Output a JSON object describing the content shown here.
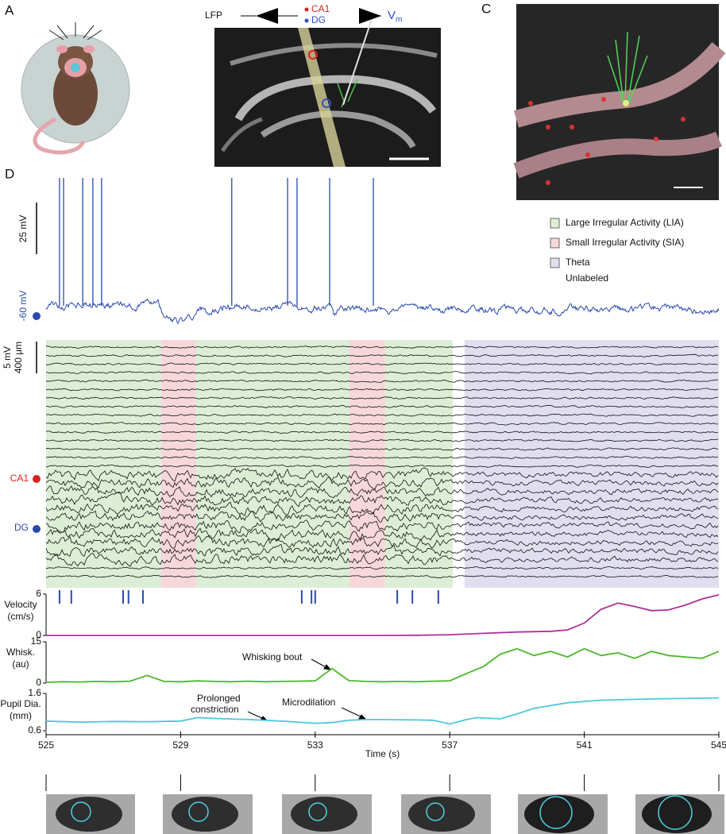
{
  "panel_a": {
    "letter": "A",
    "lfp": "LFP",
    "vm": "V",
    "vm_sub": "m",
    "ca1": "CA1",
    "dg": "DG"
  },
  "panel_c": {
    "letter": "C"
  },
  "panel_d": {
    "letter": "D",
    "vm_scale": "25 mV",
    "vm_baseline": "-60 mV",
    "spike_times": [
      525.4,
      525.52,
      526.09,
      526.39,
      526.65,
      530.52,
      532.18,
      532.46,
      533.43,
      534.73
    ],
    "lfp_scale": [
      "5 mV",
      "400 µm"
    ],
    "ca1": "CA1",
    "dg": "DG",
    "legend": [
      {
        "name": "Large Irregular Activity (LIA)",
        "color": "#dcefd6",
        "intervals": [
          [
            525,
            528.42
          ],
          [
            529.46,
            534.02
          ],
          [
            535.08,
            537.09
          ]
        ]
      },
      {
        "name": "Small Irregular Activity (SIA)",
        "color": "#f8d7da",
        "intervals": [
          [
            528.42,
            529.46
          ],
          [
            534.02,
            535.08
          ]
        ]
      },
      {
        "name": "Theta",
        "color": "#e0dff0",
        "intervals": [
          [
            537.44,
            545
          ]
        ]
      },
      {
        "name": "Unlabeled"
      }
    ],
    "event_times": [
      525.4,
      525.75,
      527.29,
      527.45,
      527.88,
      532.6,
      532.89,
      533.0,
      535.44,
      535.89,
      536.66
    ]
  },
  "chart_data": [
    {
      "type": "line",
      "ylabel": [
        "Velocity",
        "(cm/s)"
      ],
      "color": "#b0309a",
      "x": [
        525,
        527,
        529,
        531,
        533,
        535,
        536,
        537,
        538,
        539,
        540,
        540.5,
        541,
        541.5,
        542,
        542.5,
        543,
        543.5,
        544,
        544.5,
        545
      ],
      "values": [
        0,
        0,
        0,
        0,
        0,
        0,
        0.02,
        0.1,
        0.3,
        0.5,
        0.6,
        0.8,
        1.8,
        3.8,
        4.7,
        4.2,
        3.6,
        3.7,
        4.4,
        5.3,
        5.9
      ],
      "xlim": [
        525,
        545
      ],
      "ylim": [
        0,
        6
      ],
      "yticks": [
        0,
        6
      ]
    },
    {
      "type": "line",
      "ylabel": [
        "Whisk.",
        "(au)"
      ],
      "color": "#4cb82a",
      "x": [
        525,
        525.5,
        526,
        526.5,
        527,
        527.5,
        528,
        528.5,
        529,
        529.5,
        530,
        530.5,
        531,
        531.5,
        532,
        532.5,
        533,
        533.5,
        534,
        534.5,
        535,
        535.5,
        536,
        536.5,
        537,
        537.5,
        538,
        538.5,
        539,
        539.5,
        540,
        540.5,
        541,
        541.5,
        542,
        542.5,
        543,
        543.5,
        544,
        544.5,
        545
      ],
      "values": [
        0.3,
        0.5,
        0.4,
        0.6,
        0.5,
        0.7,
        2.8,
        0.6,
        0.5,
        0.8,
        0.6,
        0.5,
        0.7,
        0.5,
        0.6,
        0.7,
        0.8,
        5.3,
        0.9,
        0.6,
        0.5,
        0.6,
        0.5,
        0.7,
        0.8,
        3.5,
        6,
        10.5,
        12.5,
        10,
        11.5,
        9.5,
        12.5,
        10,
        11,
        9,
        11.5,
        10,
        9.5,
        9,
        11.5
      ],
      "xlim": [
        525,
        545
      ],
      "ylim": [
        0,
        15
      ],
      "yticks": [
        0,
        15
      ],
      "annotations": [
        {
          "text": "Whisking bout"
        }
      ]
    },
    {
      "type": "line",
      "ylabel": [
        "Pupil Dia.",
        "(mm)"
      ],
      "color": "#4fc8dc",
      "x": [
        525,
        526,
        527,
        528,
        529,
        529.5,
        530,
        531,
        532,
        533,
        533.5,
        534,
        534.5,
        535,
        536,
        536.5,
        537,
        537.5,
        537.8,
        538.5,
        539,
        539.5,
        540.5,
        541.5,
        543,
        545
      ],
      "values": [
        0.86,
        0.83,
        0.85,
        0.84,
        0.86,
        0.95,
        0.93,
        0.9,
        0.86,
        0.8,
        0.82,
        0.88,
        0.9,
        0.9,
        0.89,
        0.88,
        0.78,
        0.9,
        0.95,
        0.92,
        1.05,
        1.2,
        1.35,
        1.42,
        1.45,
        1.48
      ],
      "xlim": [
        525,
        545
      ],
      "ylim": [
        0.6,
        1.6
      ],
      "yticks": [
        0.6,
        1.6
      ],
      "xticks": [
        525,
        529,
        533,
        537,
        541,
        545
      ],
      "xlabel": "Time (s)",
      "annotations": [
        {
          "text": [
            "Prolonged",
            "constriction"
          ]
        },
        {
          "text": "Microdilation"
        }
      ]
    }
  ]
}
